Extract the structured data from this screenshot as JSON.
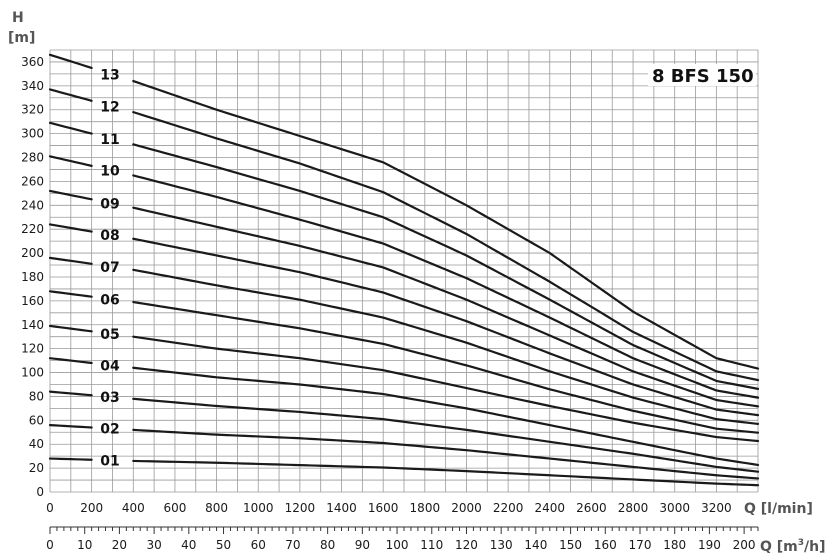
{
  "chart_data": {
    "type": "line",
    "title": "8 BFS 150",
    "ylabel_symbol": "H",
    "ylabel_unit": "[m]",
    "xlabel": "Q [l/min]",
    "x2label_prefix": "Q [m",
    "x2label_sup": "3",
    "x2label_suffix": "/h]",
    "xlim": [
      0,
      3400
    ],
    "ylim": [
      0,
      370
    ],
    "x_ticks": [
      0,
      200,
      400,
      600,
      800,
      1000,
      1200,
      1400,
      1600,
      1800,
      2000,
      2200,
      2400,
      2600,
      2800,
      3000,
      3200
    ],
    "y_ticks": [
      0,
      20,
      40,
      60,
      80,
      100,
      120,
      140,
      160,
      180,
      200,
      220,
      240,
      260,
      280,
      300,
      320,
      340,
      360
    ],
    "x2_ticks": [
      0,
      10,
      20,
      30,
      40,
      50,
      60,
      70,
      80,
      90,
      100,
      110,
      120,
      130,
      140,
      150,
      160,
      170,
      180,
      190,
      200
    ],
    "grid": true,
    "series": [
      {
        "name": "01",
        "x": [
          0,
          400,
          800,
          1200,
          1600,
          2000,
          2400,
          2800,
          3200,
          3500
        ],
        "y": [
          28,
          26,
          24.5,
          22.5,
          20.5,
          17.5,
          14,
          10.5,
          7,
          5
        ]
      },
      {
        "name": "02",
        "x": [
          0,
          400,
          800,
          1200,
          1600,
          2000,
          2400,
          2800,
          3200,
          3500
        ],
        "y": [
          56,
          52,
          48,
          45,
          41,
          35,
          28,
          21,
          14,
          10
        ]
      },
      {
        "name": "03",
        "x": [
          0,
          400,
          800,
          1200,
          1600,
          2000,
          2400,
          2800,
          3200,
          3500
        ],
        "y": [
          84,
          78,
          72,
          67,
          61,
          52,
          42,
          32,
          21,
          15
        ]
      },
      {
        "name": "04",
        "x": [
          0,
          400,
          800,
          1200,
          1600,
          2000,
          2400,
          2800,
          3200,
          3500
        ],
        "y": [
          112,
          104,
          96,
          90,
          82,
          70,
          56,
          42,
          28,
          20
        ]
      },
      {
        "name": "05",
        "x": [
          0,
          400,
          800,
          1200,
          1600,
          2000,
          2400,
          2800,
          3200,
          3500
        ],
        "y": [
          139,
          130,
          120,
          112,
          102,
          87,
          72,
          58,
          46,
          41
        ]
      },
      {
        "name": "06",
        "x": [
          0,
          400,
          800,
          1200,
          1600,
          2000,
          2400,
          2800,
          3200,
          3500
        ],
        "y": [
          168,
          159,
          148,
          137,
          124,
          106,
          86,
          68,
          53,
          48
        ]
      },
      {
        "name": "07",
        "x": [
          0,
          400,
          800,
          1200,
          1600,
          2000,
          2400,
          2800,
          3200,
          3500
        ],
        "y": [
          196,
          186,
          173,
          161,
          146,
          125,
          101,
          79,
          61,
          55
        ]
      },
      {
        "name": "08",
        "x": [
          0,
          400,
          800,
          1200,
          1600,
          2000,
          2400,
          2800,
          3200,
          3500
        ],
        "y": [
          224,
          212,
          198,
          184,
          167,
          143,
          116,
          90,
          69,
          62
        ]
      },
      {
        "name": "09",
        "x": [
          0,
          400,
          800,
          1200,
          1600,
          2000,
          2400,
          2800,
          3200,
          3500
        ],
        "y": [
          252,
          238,
          222,
          206,
          188,
          161,
          131,
          101,
          77,
          69
        ]
      },
      {
        "name": "10",
        "x": [
          0,
          400,
          800,
          1200,
          1600,
          2000,
          2400,
          2800,
          3200,
          3500
        ],
        "y": [
          281,
          265,
          247,
          228,
          208,
          179,
          146,
          112,
          85,
          76
        ]
      },
      {
        "name": "11",
        "x": [
          0,
          400,
          800,
          1200,
          1600,
          2000,
          2400,
          2800,
          3200,
          3500
        ],
        "y": [
          309,
          291,
          272,
          252,
          230,
          198,
          161,
          123,
          93,
          83
        ]
      },
      {
        "name": "12",
        "x": [
          0,
          400,
          800,
          1200,
          1600,
          2000,
          2400,
          2800,
          3200,
          3500
        ],
        "y": [
          337,
          318,
          296,
          275,
          251,
          216,
          176,
          134,
          101,
          90
        ]
      },
      {
        "name": "13",
        "x": [
          0,
          400,
          800,
          1200,
          1600,
          2000,
          2400,
          2800,
          3200,
          3500
        ],
        "y": [
          366,
          344,
          320,
          298,
          276,
          240,
          200,
          151,
          112,
          99
        ]
      }
    ],
    "colors": {
      "curve": "#1a1a1a",
      "grid": "#9a9a9a",
      "axis_title": "#555555"
    }
  }
}
